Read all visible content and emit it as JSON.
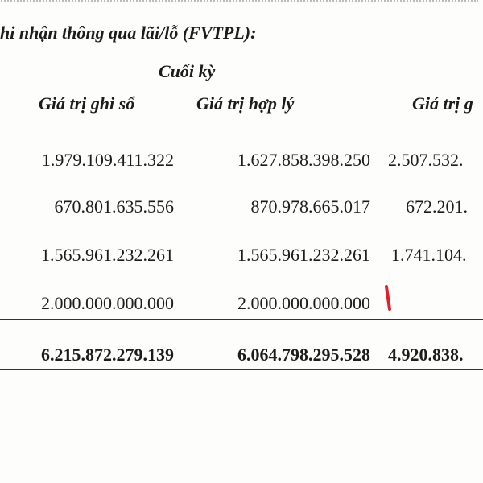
{
  "heading": "hi nhận thông qua lãi/lỗ (FVTPL):",
  "period_label": "Cuối kỳ",
  "columns": [
    "Giá trị ghi sổ",
    "Giá trị hợp lý",
    "Giá trị g"
  ],
  "rows": [
    [
      "1.979.109.411.322",
      "1.627.858.398.250",
      "2.507.532."
    ],
    [
      "670.801.635.556",
      "870.978.665.017",
      "672.201."
    ],
    [
      "1.565.961.232.261",
      "1.565.961.232.261",
      "1.741.104."
    ],
    [
      "2.000.000.000.000",
      "2.000.000.000.000",
      ""
    ]
  ],
  "total": [
    "6.215.872.279.139",
    "6.064.798.295.528",
    "4.920.838."
  ],
  "annotation_color": "#e0202a"
}
